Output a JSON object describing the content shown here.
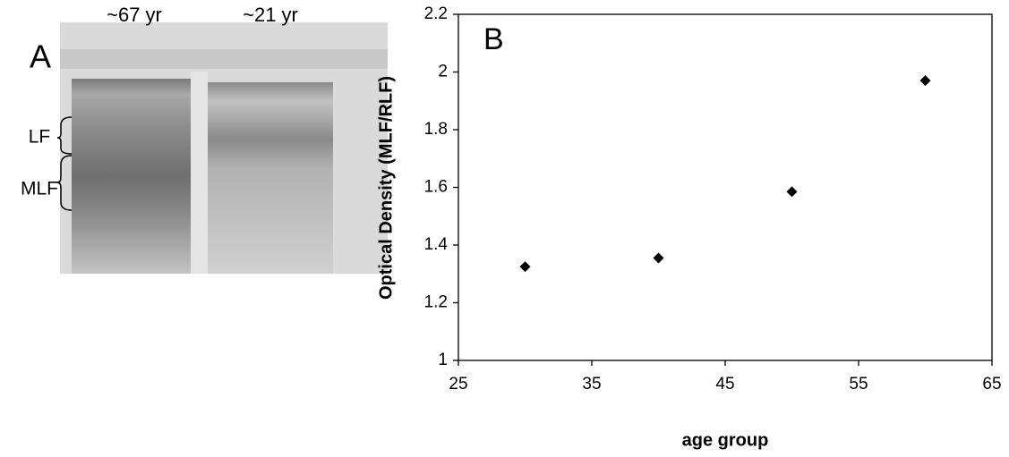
{
  "panel_a": {
    "label": "A",
    "lanes": [
      "~67 yr",
      "~21 yr"
    ],
    "bands": [
      "LF",
      "MLF"
    ]
  },
  "chart_data": {
    "type": "scatter",
    "annotation": "B",
    "xlabel": "age group",
    "ylabel": "Optical Density (MLF/RLF)",
    "x": [
      30,
      40,
      50,
      60
    ],
    "values": [
      1.325,
      1.355,
      1.585,
      1.97
    ],
    "color": "#000000",
    "xlim": [
      25,
      65
    ],
    "xticks": [
      25,
      35,
      45,
      55,
      65
    ],
    "ylim": [
      1,
      2.2
    ],
    "yticks": [
      1,
      1.2,
      1.4,
      1.6,
      1.8,
      2,
      2.2
    ],
    "grid": false
  }
}
